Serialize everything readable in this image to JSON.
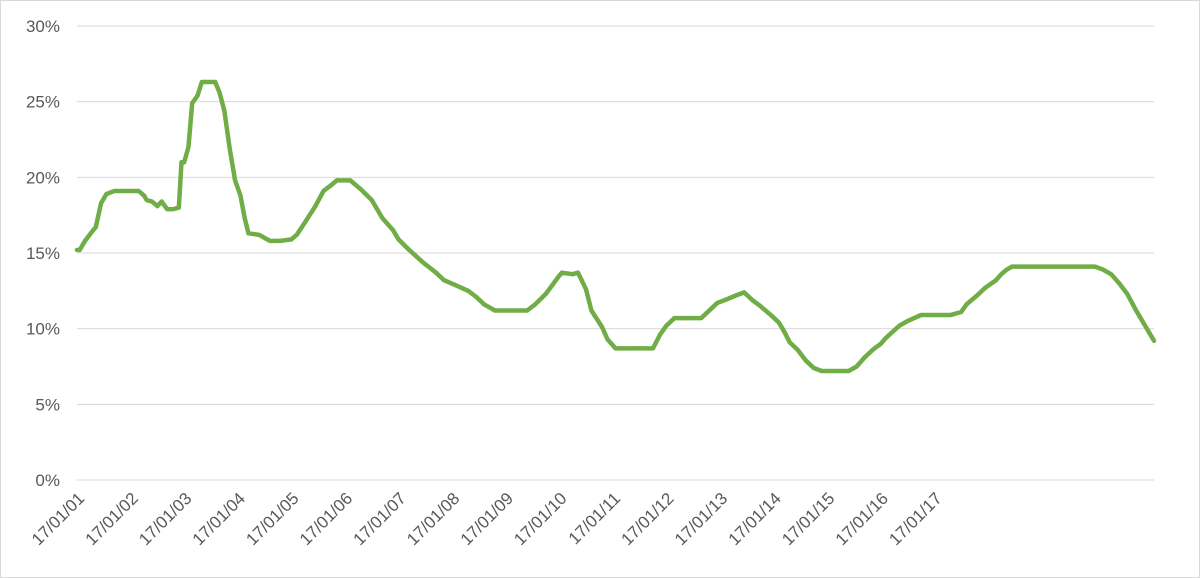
{
  "chart_data": {
    "type": "line",
    "title": "",
    "xlabel": "",
    "ylabel": "",
    "ylim": [
      0,
      30
    ],
    "y_ticks": [
      "0%",
      "5%",
      "10%",
      "15%",
      "20%",
      "25%",
      "30%"
    ],
    "y_tick_values": [
      0,
      5,
      10,
      15,
      20,
      25,
      30
    ],
    "x_tick_labels": [
      "17/01/01",
      "17/01/02",
      "17/01/03",
      "17/01/04",
      "17/01/05",
      "17/01/06",
      "17/01/07",
      "17/01/08",
      "17/01/09",
      "17/01/10",
      "17/01/11",
      "17/01/12",
      "17/01/13",
      "17/01/14",
      "17/01/15",
      "17/01/16",
      "17/01/17"
    ],
    "grid": true,
    "legend": "none",
    "series": [
      {
        "color": "#70ad47",
        "points": [
          [
            2001.0,
            15.2
          ],
          [
            2001.05,
            15.2
          ],
          [
            2001.15,
            15.8
          ],
          [
            2001.3,
            16.5
          ],
          [
            2001.35,
            16.7
          ],
          [
            2001.45,
            18.3
          ],
          [
            2001.55,
            18.9
          ],
          [
            2001.7,
            19.1
          ],
          [
            2002.0,
            19.1
          ],
          [
            2002.15,
            19.1
          ],
          [
            2002.25,
            18.8
          ],
          [
            2002.3,
            18.5
          ],
          [
            2002.4,
            18.4
          ],
          [
            2002.5,
            18.1
          ],
          [
            2002.58,
            18.4
          ],
          [
            2002.68,
            17.9
          ],
          [
            2002.8,
            17.9
          ],
          [
            2002.9,
            18.0
          ],
          [
            2002.95,
            21.0
          ],
          [
            2003.0,
            21.0
          ],
          [
            2003.08,
            22.0
          ],
          [
            2003.15,
            24.9
          ],
          [
            2003.25,
            25.4
          ],
          [
            2003.33,
            26.3
          ],
          [
            2003.58,
            26.3
          ],
          [
            2003.66,
            25.6
          ],
          [
            2003.75,
            24.4
          ],
          [
            2003.85,
            21.9
          ],
          [
            2003.95,
            19.8
          ],
          [
            2004.05,
            18.8
          ],
          [
            2004.13,
            17.3
          ],
          [
            2004.2,
            16.3
          ],
          [
            2004.4,
            16.2
          ],
          [
            2004.5,
            16.0
          ],
          [
            2004.6,
            15.8
          ],
          [
            2004.8,
            15.8
          ],
          [
            2005.0,
            15.9
          ],
          [
            2005.1,
            16.2
          ],
          [
            2005.25,
            17.0
          ],
          [
            2005.45,
            18.1
          ],
          [
            2005.6,
            19.1
          ],
          [
            2005.75,
            19.5
          ],
          [
            2005.85,
            19.8
          ],
          [
            2006.1,
            19.8
          ],
          [
            2006.3,
            19.2
          ],
          [
            2006.5,
            18.5
          ],
          [
            2006.7,
            17.3
          ],
          [
            2006.9,
            16.5
          ],
          [
            2007.0,
            15.9
          ],
          [
            2007.2,
            15.2
          ],
          [
            2007.45,
            14.4
          ],
          [
            2007.7,
            13.7
          ],
          [
            2007.85,
            13.2
          ],
          [
            2008.05,
            12.9
          ],
          [
            2008.3,
            12.5
          ],
          [
            2008.45,
            12.1
          ],
          [
            2008.6,
            11.6
          ],
          [
            2008.8,
            11.2
          ],
          [
            2009.0,
            11.2
          ],
          [
            2009.3,
            11.2
          ],
          [
            2009.4,
            11.2
          ],
          [
            2009.55,
            11.6
          ],
          [
            2009.75,
            12.3
          ],
          [
            2010.0,
            13.5
          ],
          [
            2010.05,
            13.7
          ],
          [
            2010.25,
            13.6
          ],
          [
            2010.35,
            13.7
          ],
          [
            2010.5,
            12.6
          ],
          [
            2010.6,
            11.2
          ],
          [
            2010.8,
            10.1
          ],
          [
            2010.9,
            9.3
          ],
          [
            2011.05,
            8.7
          ],
          [
            2011.2,
            8.7
          ],
          [
            2011.5,
            8.7
          ],
          [
            2011.65,
            8.7
          ],
          [
            2011.75,
            8.7
          ],
          [
            2011.88,
            9.6
          ],
          [
            2012.0,
            10.2
          ],
          [
            2012.15,
            10.7
          ],
          [
            2012.3,
            10.7
          ],
          [
            2012.65,
            10.7
          ],
          [
            2012.8,
            11.2
          ],
          [
            2012.95,
            11.7
          ],
          [
            2013.1,
            11.9
          ],
          [
            2013.3,
            12.2
          ],
          [
            2013.45,
            12.4
          ],
          [
            2013.6,
            11.9
          ],
          [
            2013.75,
            11.5
          ],
          [
            2013.95,
            10.9
          ],
          [
            2014.1,
            10.4
          ],
          [
            2014.2,
            9.8
          ],
          [
            2014.3,
            9.1
          ],
          [
            2014.45,
            8.6
          ],
          [
            2014.6,
            7.9
          ],
          [
            2014.75,
            7.4
          ],
          [
            2014.9,
            7.2
          ],
          [
            2015.05,
            7.2
          ],
          [
            2015.25,
            7.2
          ],
          [
            2015.4,
            7.2
          ],
          [
            2015.55,
            7.5
          ],
          [
            2015.7,
            8.1
          ],
          [
            2015.85,
            8.6
          ],
          [
            2016.0,
            9.0
          ],
          [
            2016.1,
            9.4
          ],
          [
            2016.35,
            10.2
          ],
          [
            2016.5,
            10.5
          ],
          [
            2016.75,
            10.9
          ],
          [
            2017.0,
            10.9
          ],
          [
            2017.1,
            10.9
          ],
          [
            2017.3,
            10.9
          ],
          [
            2017.5,
            11.1
          ],
          [
            2017.6,
            11.6
          ],
          [
            2017.8,
            12.2
          ],
          [
            2017.95,
            12.7
          ],
          [
            2018.15,
            13.2
          ],
          [
            2018.25,
            13.6
          ],
          [
            2018.35,
            13.9
          ],
          [
            2018.45,
            14.1
          ],
          [
            2018.75,
            14.1
          ],
          [
            2019.15,
            14.1
          ],
          [
            2019.5,
            14.1
          ],
          [
            2019.8,
            14.1
          ],
          [
            2020.0,
            14.1
          ],
          [
            2020.15,
            13.9
          ],
          [
            2020.3,
            13.6
          ],
          [
            2020.45,
            13.0
          ],
          [
            2020.6,
            12.3
          ],
          [
            2020.75,
            11.3
          ],
          [
            2020.9,
            10.4
          ],
          [
            2021.0,
            9.8
          ],
          [
            2021.1,
            9.2
          ]
        ]
      }
    ]
  }
}
